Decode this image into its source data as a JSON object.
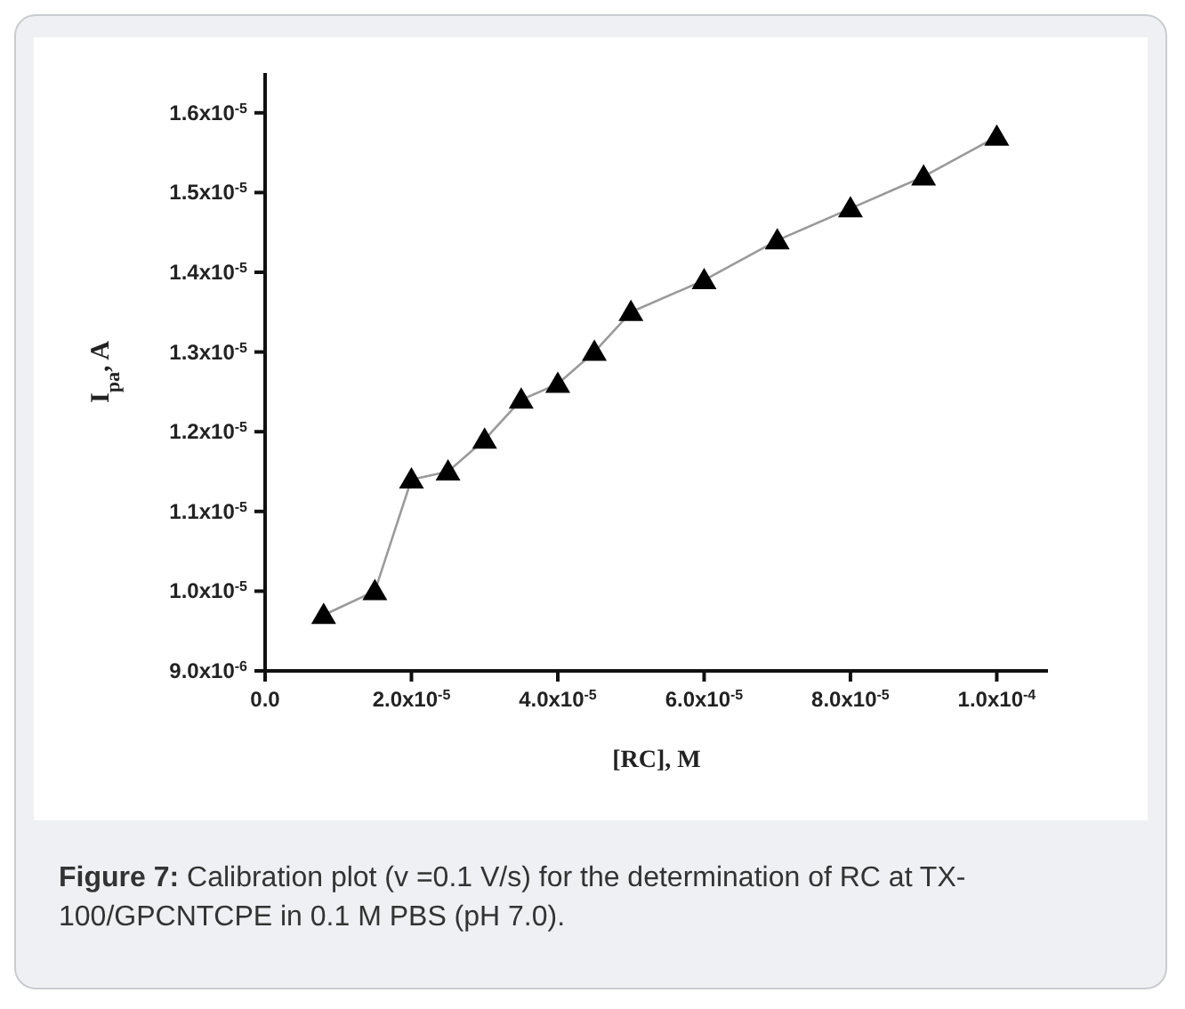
{
  "chart_data": {
    "type": "line",
    "xlabel": "[RC], M",
    "ylabel": "I$_{pa}$, A",
    "x": [
      8e-06,
      1.5e-05,
      2e-05,
      2.5e-05,
      3e-05,
      3.5e-05,
      4e-05,
      4.5e-05,
      5e-05,
      6e-05,
      7e-05,
      8e-05,
      9e-05,
      0.0001
    ],
    "series": [
      {
        "color": "#000000",
        "values": [
          9.7e-06,
          1e-05,
          1.14e-05,
          1.15e-05,
          1.19e-05,
          1.24e-05,
          1.26e-05,
          1.3e-05,
          1.35e-05,
          1.39e-05,
          1.44e-05,
          1.48e-05,
          1.52e-05,
          1.57e-05
        ]
      }
    ],
    "xlim": [
      0,
      0.000107
    ],
    "xticks": [
      {
        "value": 0,
        "label": "0.0"
      },
      {
        "value": 2e-05,
        "label": "2.0x10$^{-5}$"
      },
      {
        "value": 4e-05,
        "label": "4.0x10$^{-5}$"
      },
      {
        "value": 6e-05,
        "label": "6.0x10$^{-5}$"
      },
      {
        "value": 8e-05,
        "label": "8.0x10$^{-5}$"
      },
      {
        "value": 0.0001,
        "label": "1.0x10$^{-4}$"
      }
    ],
    "ylim": [
      9e-06,
      1.65e-05
    ],
    "yticks": [
      {
        "value": 9e-06,
        "label": "9.0x10$^{-6}$"
      },
      {
        "value": 1e-05,
        "label": "1.0x10$^{-5}$"
      },
      {
        "value": 1.1e-05,
        "label": "1.1x10$^{-5}$"
      },
      {
        "value": 1.2e-05,
        "label": "1.2x10$^{-5}$"
      },
      {
        "value": 1.3e-05,
        "label": "1.3x10$^{-5}$"
      },
      {
        "value": 1.4e-05,
        "label": "1.4x10$^{-5}$"
      },
      {
        "value": 1.5e-05,
        "label": "1.5x10$^{-5}$"
      },
      {
        "value": 1.6e-05,
        "label": "1.6x10$^{-5}$"
      }
    ],
    "marker": "triangle",
    "grid": false,
    "legend": false,
    "annotations": [
      "Figure 7: Calibration plot (v =0.1 V/s) for the determination of RC at TX-100/GPCNTCPE in 0.1 M PBS (pH 7.0)."
    ]
  }
}
